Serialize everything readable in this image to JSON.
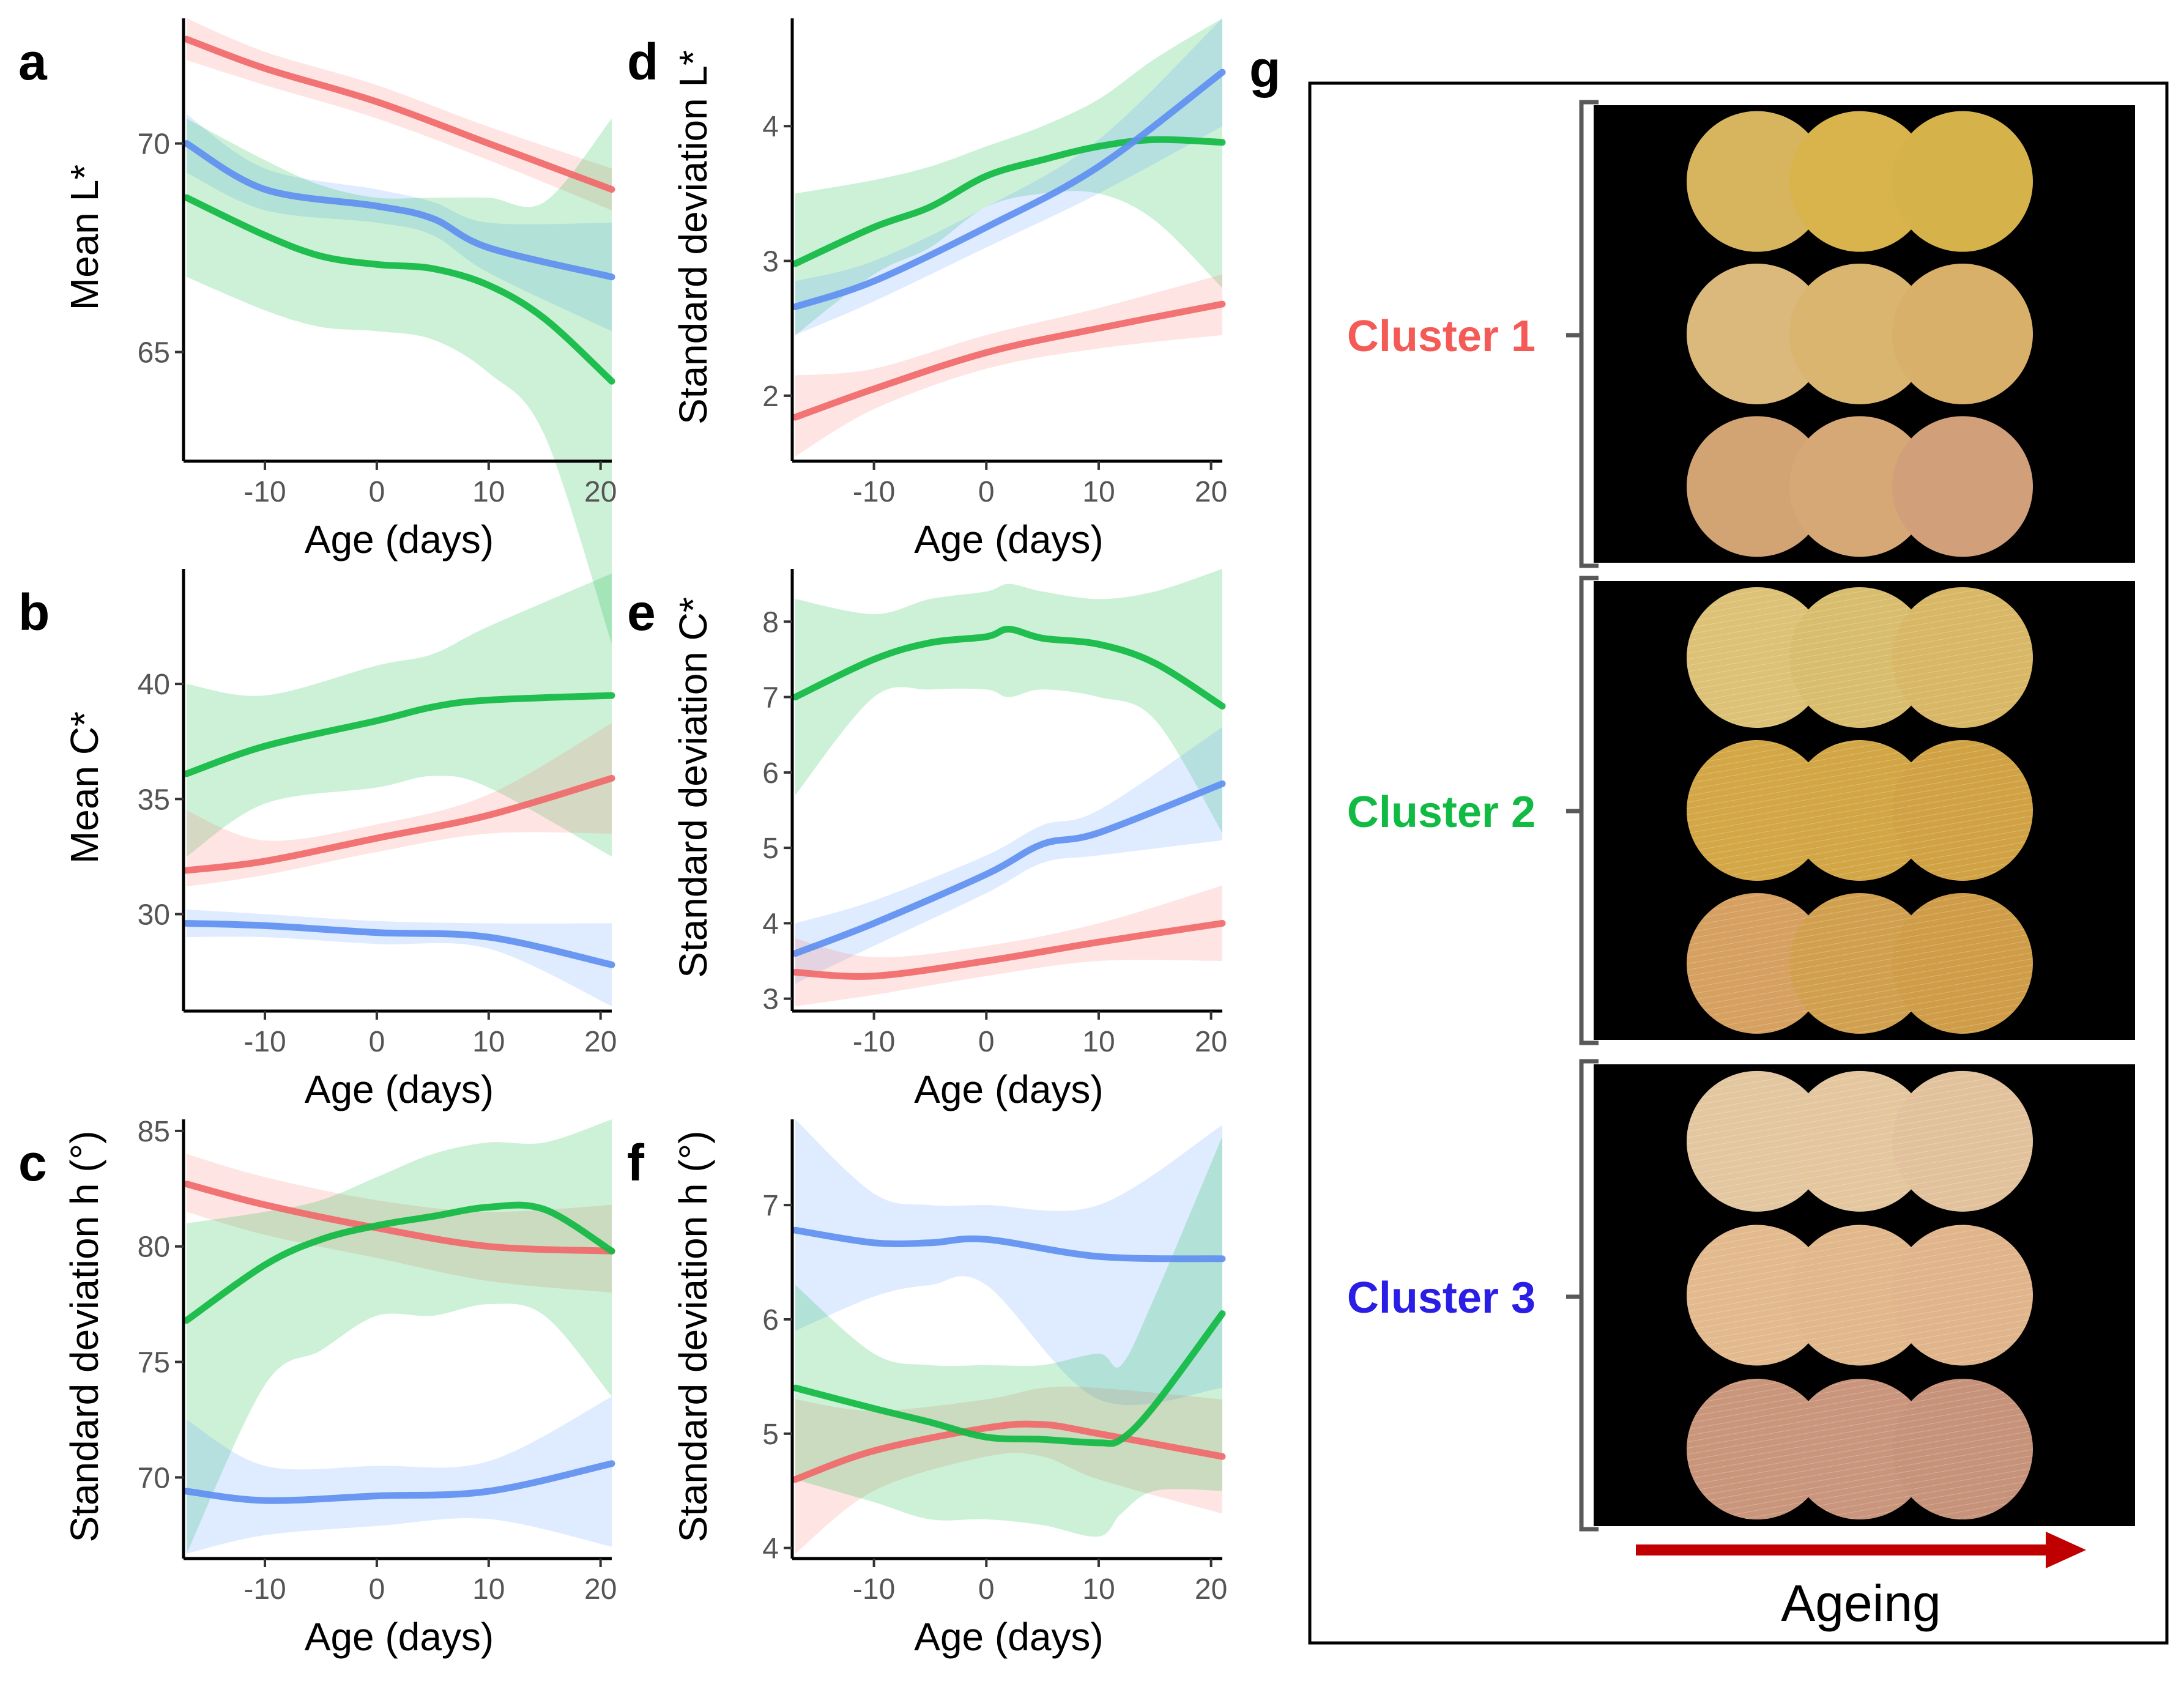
{
  "panels": [
    {
      "id": "a",
      "label": "a",
      "ylabel": "Mean L*",
      "xlabel": "Age (days)",
      "xlim": [
        -17,
        21
      ],
      "ylim": [
        62.5,
        73
      ],
      "xticks": [
        -10,
        0,
        10,
        20
      ],
      "yticks": [
        65,
        70
      ],
      "series": [
        {
          "name": "Cluster 1",
          "color_key": "red",
          "x": [
            -17,
            -10,
            0,
            10,
            21
          ],
          "y": [
            72.5,
            71.8,
            71.0,
            70.0,
            68.9
          ],
          "lo": [
            72.0,
            71.4,
            70.6,
            69.6,
            68.4
          ],
          "hi": [
            73.0,
            72.2,
            71.4,
            70.4,
            69.4
          ]
        },
        {
          "name": "Cluster 3",
          "color_key": "blue",
          "x": [
            -17,
            -10,
            0,
            5,
            10,
            21
          ],
          "y": [
            70.0,
            68.9,
            68.5,
            68.2,
            67.5,
            66.8
          ],
          "lo": [
            69.3,
            68.4,
            68.1,
            67.8,
            66.9,
            65.5
          ],
          "hi": [
            70.7,
            69.4,
            68.9,
            68.6,
            68.1,
            68.1
          ]
        },
        {
          "name": "Cluster 2",
          "color_key": "green",
          "x": [
            -17,
            -10,
            -5,
            0,
            5,
            10,
            15,
            21
          ],
          "y": [
            68.7,
            67.8,
            67.3,
            67.1,
            67.0,
            66.6,
            65.8,
            64.3
          ],
          "lo": [
            66.8,
            66.0,
            65.6,
            65.5,
            65.3,
            64.5,
            63.0,
            58.0
          ],
          "hi": [
            70.6,
            69.6,
            69.0,
            68.7,
            68.7,
            68.7,
            68.6,
            70.6
          ]
        }
      ]
    },
    {
      "id": "b",
      "label": "b",
      "ylabel": "Mean C*",
      "xlabel": "Age (days)",
      "xlim": [
        -17,
        21
      ],
      "ylim": [
        26,
        45
      ],
      "xticks": [
        -10,
        0,
        10,
        20
      ],
      "yticks": [
        30,
        35,
        40
      ],
      "series": [
        {
          "name": "Cluster 2",
          "color_key": "green",
          "x": [
            -17,
            -10,
            0,
            5,
            10,
            21
          ],
          "y": [
            36.1,
            37.3,
            38.4,
            39.0,
            39.3,
            39.5
          ],
          "lo": [
            32.5,
            34.8,
            35.5,
            36.0,
            35.5,
            32.5
          ],
          "hi": [
            40.0,
            39.5,
            40.8,
            41.3,
            42.5,
            44.8
          ]
        },
        {
          "name": "Cluster 1",
          "color_key": "red",
          "x": [
            -17,
            -10,
            0,
            10,
            21
          ],
          "y": [
            31.9,
            32.3,
            33.3,
            34.3,
            35.9
          ],
          "lo": [
            31.2,
            31.7,
            32.7,
            33.5,
            33.5
          ],
          "hi": [
            34.5,
            33.2,
            33.9,
            35.2,
            38.3
          ]
        },
        {
          "name": "Cluster 3",
          "color_key": "blue",
          "x": [
            -17,
            -10,
            0,
            10,
            21
          ],
          "y": [
            29.6,
            29.5,
            29.2,
            29.0,
            27.8
          ],
          "lo": [
            29.0,
            29.0,
            28.7,
            28.5,
            26.0
          ],
          "hi": [
            30.2,
            30.0,
            29.7,
            29.6,
            29.6
          ]
        }
      ]
    },
    {
      "id": "c",
      "label": "c",
      "ylabel": "Standard deviation h (°)",
      "xlabel": "Age (days)",
      "xlim": [
        -17,
        21
      ],
      "ylim": [
        66.7,
        85.5
      ],
      "xticks": [
        -10,
        0,
        10,
        20
      ],
      "yticks": [
        70,
        75,
        80,
        85
      ],
      "series": [
        {
          "name": "Cluster 1",
          "color_key": "red",
          "x": [
            -17,
            -10,
            0,
            10,
            21
          ],
          "y": [
            82.7,
            81.8,
            80.8,
            80.0,
            79.8
          ],
          "lo": [
            81.5,
            80.5,
            79.5,
            78.5,
            78.0
          ],
          "hi": [
            84.0,
            83.0,
            82.0,
            81.5,
            81.8
          ]
        },
        {
          "name": "Cluster 2",
          "color_key": "green",
          "x": [
            -17,
            -10,
            -5,
            0,
            5,
            10,
            15,
            21
          ],
          "y": [
            76.8,
            79.2,
            80.3,
            80.9,
            81.3,
            81.7,
            81.6,
            79.8
          ],
          "lo": [
            66.7,
            74.0,
            75.5,
            77.0,
            77.0,
            77.5,
            77.0,
            73.5
          ],
          "hi": [
            81.0,
            81.5,
            82.0,
            83.0,
            84.0,
            84.5,
            84.5,
            85.5
          ]
        },
        {
          "name": "Cluster 3",
          "color_key": "blue",
          "x": [
            -17,
            -10,
            0,
            10,
            21
          ],
          "y": [
            69.4,
            69.0,
            69.2,
            69.4,
            70.6
          ],
          "lo": [
            66.7,
            67.5,
            67.9,
            68.2,
            67.0
          ],
          "hi": [
            72.5,
            70.5,
            70.5,
            70.7,
            73.5
          ]
        }
      ]
    },
    {
      "id": "d",
      "label": "d",
      "ylabel": "Standard deviation L*",
      "xlabel": "Age (days)",
      "xlim": [
        -17,
        21
      ],
      "ylim": [
        1.55,
        4.8
      ],
      "xticks": [
        -10,
        0,
        10,
        20
      ],
      "yticks": [
        2,
        3,
        4
      ],
      "series": [
        {
          "name": "Cluster 2",
          "color_key": "green",
          "x": [
            -17,
            -10,
            -5,
            0,
            5,
            10,
            15,
            21
          ],
          "y": [
            2.98,
            3.25,
            3.4,
            3.63,
            3.75,
            3.85,
            3.9,
            3.88
          ],
          "lo": [
            2.45,
            2.9,
            3.1,
            3.4,
            3.5,
            3.5,
            3.3,
            2.8
          ],
          "hi": [
            3.5,
            3.6,
            3.7,
            3.85,
            4.0,
            4.2,
            4.5,
            4.8
          ]
        },
        {
          "name": "Cluster 3",
          "color_key": "blue",
          "x": [
            -17,
            -10,
            0,
            10,
            21
          ],
          "y": [
            2.66,
            2.85,
            3.25,
            3.7,
            4.4
          ],
          "lo": [
            2.45,
            2.7,
            3.1,
            3.5,
            4.0
          ],
          "hi": [
            2.85,
            3.0,
            3.4,
            3.9,
            4.8
          ]
        },
        {
          "name": "Cluster 1",
          "color_key": "red",
          "x": [
            -17,
            -10,
            0,
            10,
            21
          ],
          "y": [
            1.84,
            2.05,
            2.32,
            2.5,
            2.68
          ],
          "lo": [
            1.55,
            1.9,
            2.2,
            2.35,
            2.45
          ],
          "hi": [
            2.15,
            2.2,
            2.45,
            2.65,
            2.9
          ]
        }
      ]
    },
    {
      "id": "e",
      "label": "e",
      "ylabel": "Standard deviation C*",
      "xlabel": "Age (days)",
      "xlim": [
        -17,
        21
      ],
      "ylim": [
        2.9,
        8.7
      ],
      "xticks": [
        -10,
        0,
        10,
        20
      ],
      "yticks": [
        3,
        4,
        5,
        6,
        7,
        8
      ],
      "series": [
        {
          "name": "Cluster 2",
          "color_key": "green",
          "x": [
            -17,
            -10,
            -5,
            0,
            2,
            5,
            10,
            15,
            21
          ],
          "y": [
            7.0,
            7.5,
            7.72,
            7.8,
            7.9,
            7.78,
            7.7,
            7.45,
            6.88
          ],
          "lo": [
            5.7,
            7.0,
            7.1,
            7.1,
            7.0,
            7.1,
            7.0,
            6.7,
            5.2
          ],
          "hi": [
            8.3,
            8.1,
            8.3,
            8.4,
            8.5,
            8.4,
            8.3,
            8.4,
            8.7
          ]
        },
        {
          "name": "Cluster 3",
          "color_key": "blue",
          "x": [
            -17,
            -10,
            0,
            5,
            10,
            21
          ],
          "y": [
            3.6,
            4.0,
            4.65,
            5.05,
            5.2,
            5.85
          ],
          "lo": [
            3.2,
            3.7,
            4.4,
            4.8,
            4.9,
            5.1
          ],
          "hi": [
            4.0,
            4.3,
            4.9,
            5.3,
            5.5,
            6.6
          ]
        },
        {
          "name": "Cluster 1",
          "color_key": "red",
          "x": [
            -17,
            -10,
            0,
            10,
            21
          ],
          "y": [
            3.35,
            3.3,
            3.5,
            3.75,
            4.0
          ],
          "lo": [
            2.9,
            3.05,
            3.3,
            3.5,
            3.5
          ],
          "hi": [
            3.8,
            3.55,
            3.7,
            4.0,
            4.5
          ]
        }
      ]
    },
    {
      "id": "f",
      "label": "f",
      "ylabel": "Standard deviation h (°)",
      "xlabel": "Age (days)",
      "xlim": [
        -17,
        21
      ],
      "ylim": [
        3.95,
        7.75
      ],
      "xticks": [
        -10,
        0,
        10,
        20
      ],
      "yticks": [
        4,
        5,
        6,
        7
      ],
      "series": [
        {
          "name": "Cluster 3",
          "color_key": "blue",
          "x": [
            -17,
            -10,
            -5,
            0,
            10,
            21
          ],
          "y": [
            6.78,
            6.67,
            6.67,
            6.7,
            6.55,
            6.53
          ],
          "lo": [
            5.9,
            6.2,
            6.3,
            6.3,
            5.3,
            5.4
          ],
          "hi": [
            7.75,
            7.1,
            7.0,
            7.0,
            7.0,
            7.7
          ]
        },
        {
          "name": "Cluster 1",
          "color_key": "red",
          "x": [
            -17,
            -10,
            0,
            5,
            10,
            21
          ],
          "y": [
            4.6,
            4.85,
            5.05,
            5.08,
            5.0,
            4.8
          ],
          "lo": [
            3.95,
            4.5,
            4.8,
            4.8,
            4.6,
            4.3
          ],
          "hi": [
            5.3,
            5.2,
            5.3,
            5.4,
            5.4,
            5.3
          ]
        },
        {
          "name": "Cluster 2",
          "color_key": "green",
          "x": [
            -17,
            -10,
            -5,
            0,
            5,
            10,
            12,
            15,
            21
          ],
          "y": [
            5.4,
            5.22,
            5.1,
            4.97,
            4.95,
            4.92,
            4.95,
            5.25,
            6.05
          ],
          "lo": [
            4.6,
            4.4,
            4.25,
            4.25,
            4.2,
            4.1,
            4.3,
            4.5,
            4.5
          ],
          "hi": [
            6.3,
            5.7,
            5.6,
            5.6,
            5.6,
            5.7,
            5.6,
            6.2,
            7.6
          ]
        }
      ]
    }
  ],
  "colors": {
    "red": "#f0696a",
    "green": "#10ba43",
    "blue": "#5f8ff0",
    "fill_red": "#f8766d",
    "fill_green": "#00ba38",
    "fill_blue": "#619cff"
  },
  "panel_g": {
    "label": "g",
    "clusters": [
      {
        "name": "Cluster 1",
        "color": "#f45a56",
        "swatches": [
          "#d6b55e",
          "#d9b34c",
          "#d6b24a",
          "#dbb87c",
          "#d9b570",
          "#d8b06a",
          "#d2a474",
          "#d6a876",
          "#d1a07a"
        ]
      },
      {
        "name": "Cluster 2",
        "color": "#10ba43",
        "swatches": [
          "#dcc176",
          "#d9bd6e",
          "#d8b766",
          "#d3a646",
          "#d2a545",
          "#d1a244",
          "#d5a060",
          "#d1a04e",
          "#cf9c48"
        ]
      },
      {
        "name": "Cluster 3",
        "color": "#2a1ee6",
        "swatches": [
          "#e3c7a0",
          "#e4c79e",
          "#e2c29d",
          "#e2ba8e",
          "#e1b78c",
          "#e0b58c",
          "#c9967c",
          "#c9957c",
          "#c7927a"
        ]
      }
    ],
    "arrow_label": "Ageing",
    "arrow_color": "#c00000"
  }
}
